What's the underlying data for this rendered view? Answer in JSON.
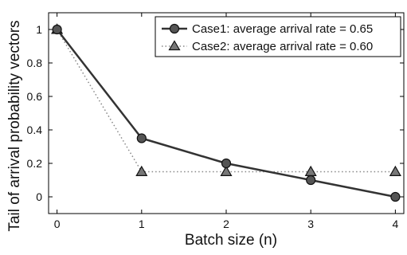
{
  "chart_data": {
    "type": "line",
    "xlabel": "Batch size (n)",
    "ylabel": "Tail of arrival probability vectors",
    "x": [
      0,
      1,
      2,
      3,
      4
    ],
    "xlim": [
      -0.1,
      4.1
    ],
    "ylim": [
      -0.1,
      1.1
    ],
    "x_ticks": [
      0,
      1,
      2,
      3,
      4
    ],
    "y_ticks": [
      0,
      0.2,
      0.4,
      0.6,
      0.8,
      1
    ],
    "x_tick_labels": [
      "0",
      "1",
      "2",
      "3",
      "4"
    ],
    "y_tick_labels": [
      "0",
      "0.2",
      "0.4",
      "0.6",
      "0.8",
      "1"
    ],
    "grid": false,
    "legend_position": "top-right",
    "series": [
      {
        "name": "Case1: average arrival rate = 0.65",
        "values": [
          1,
          0.35,
          0.2,
          0.1,
          0
        ],
        "line_style": "solid",
        "marker": "circle",
        "color": "#333333",
        "marker_fill": "#555555"
      },
      {
        "name": "Case2: average arrival rate = 0.60",
        "values": [
          1,
          0.15,
          0.15,
          0.15,
          0.15
        ],
        "line_style": "dotted",
        "marker": "triangle",
        "color": "#888888",
        "marker_fill": "#777777"
      }
    ]
  }
}
